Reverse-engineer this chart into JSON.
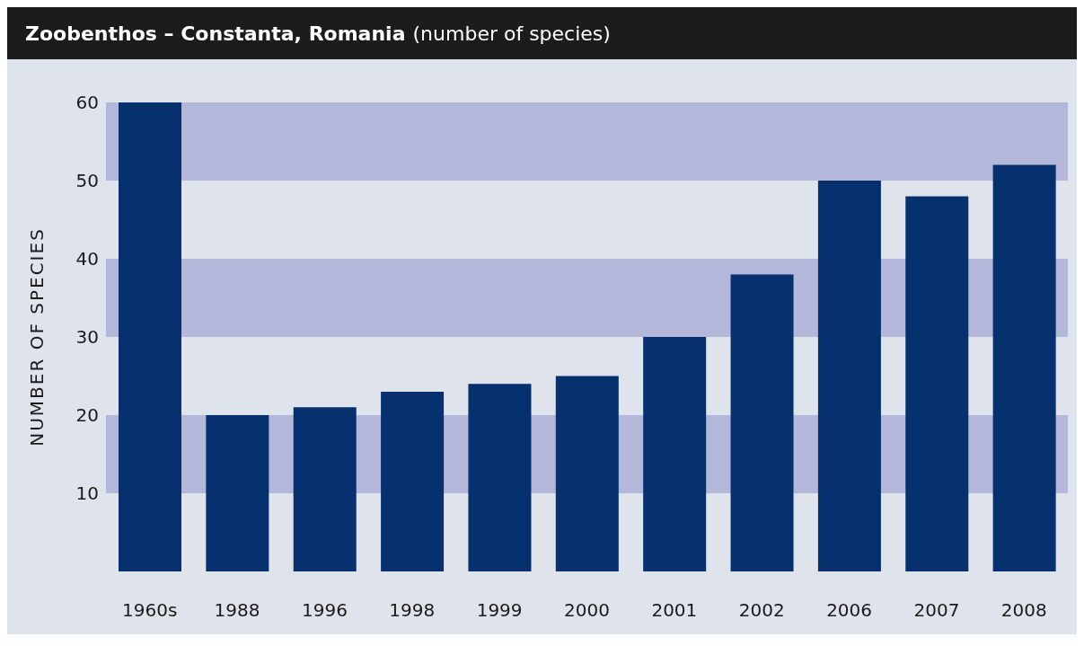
{
  "chart_data": {
    "type": "bar",
    "title": "Zoobenthos – Constanta, Romania",
    "subtitle": "(number of species)",
    "ylabel": "NUMBER OF SPECIES",
    "categories": [
      "1960s",
      "1988",
      "1996",
      "1998",
      "1999",
      "2000",
      "2001",
      "2002",
      "2006",
      "2007",
      "2008"
    ],
    "values": [
      60,
      20,
      21,
      23,
      24,
      25,
      30,
      38,
      50,
      48,
      52
    ],
    "color": "#06306e",
    "ylim": [
      0,
      60
    ],
    "yticks": [
      10,
      20,
      30,
      40,
      50,
      60
    ],
    "bands": [
      {
        "axis": "y",
        "from": 10,
        "to": 20,
        "color": "#b3b7d9"
      },
      {
        "axis": "y",
        "from": 30,
        "to": 40,
        "color": "#b3b7d9"
      },
      {
        "axis": "y",
        "from": 50,
        "to": 60,
        "color": "#b3b7d9"
      }
    ],
    "grid": false,
    "legend": false
  }
}
